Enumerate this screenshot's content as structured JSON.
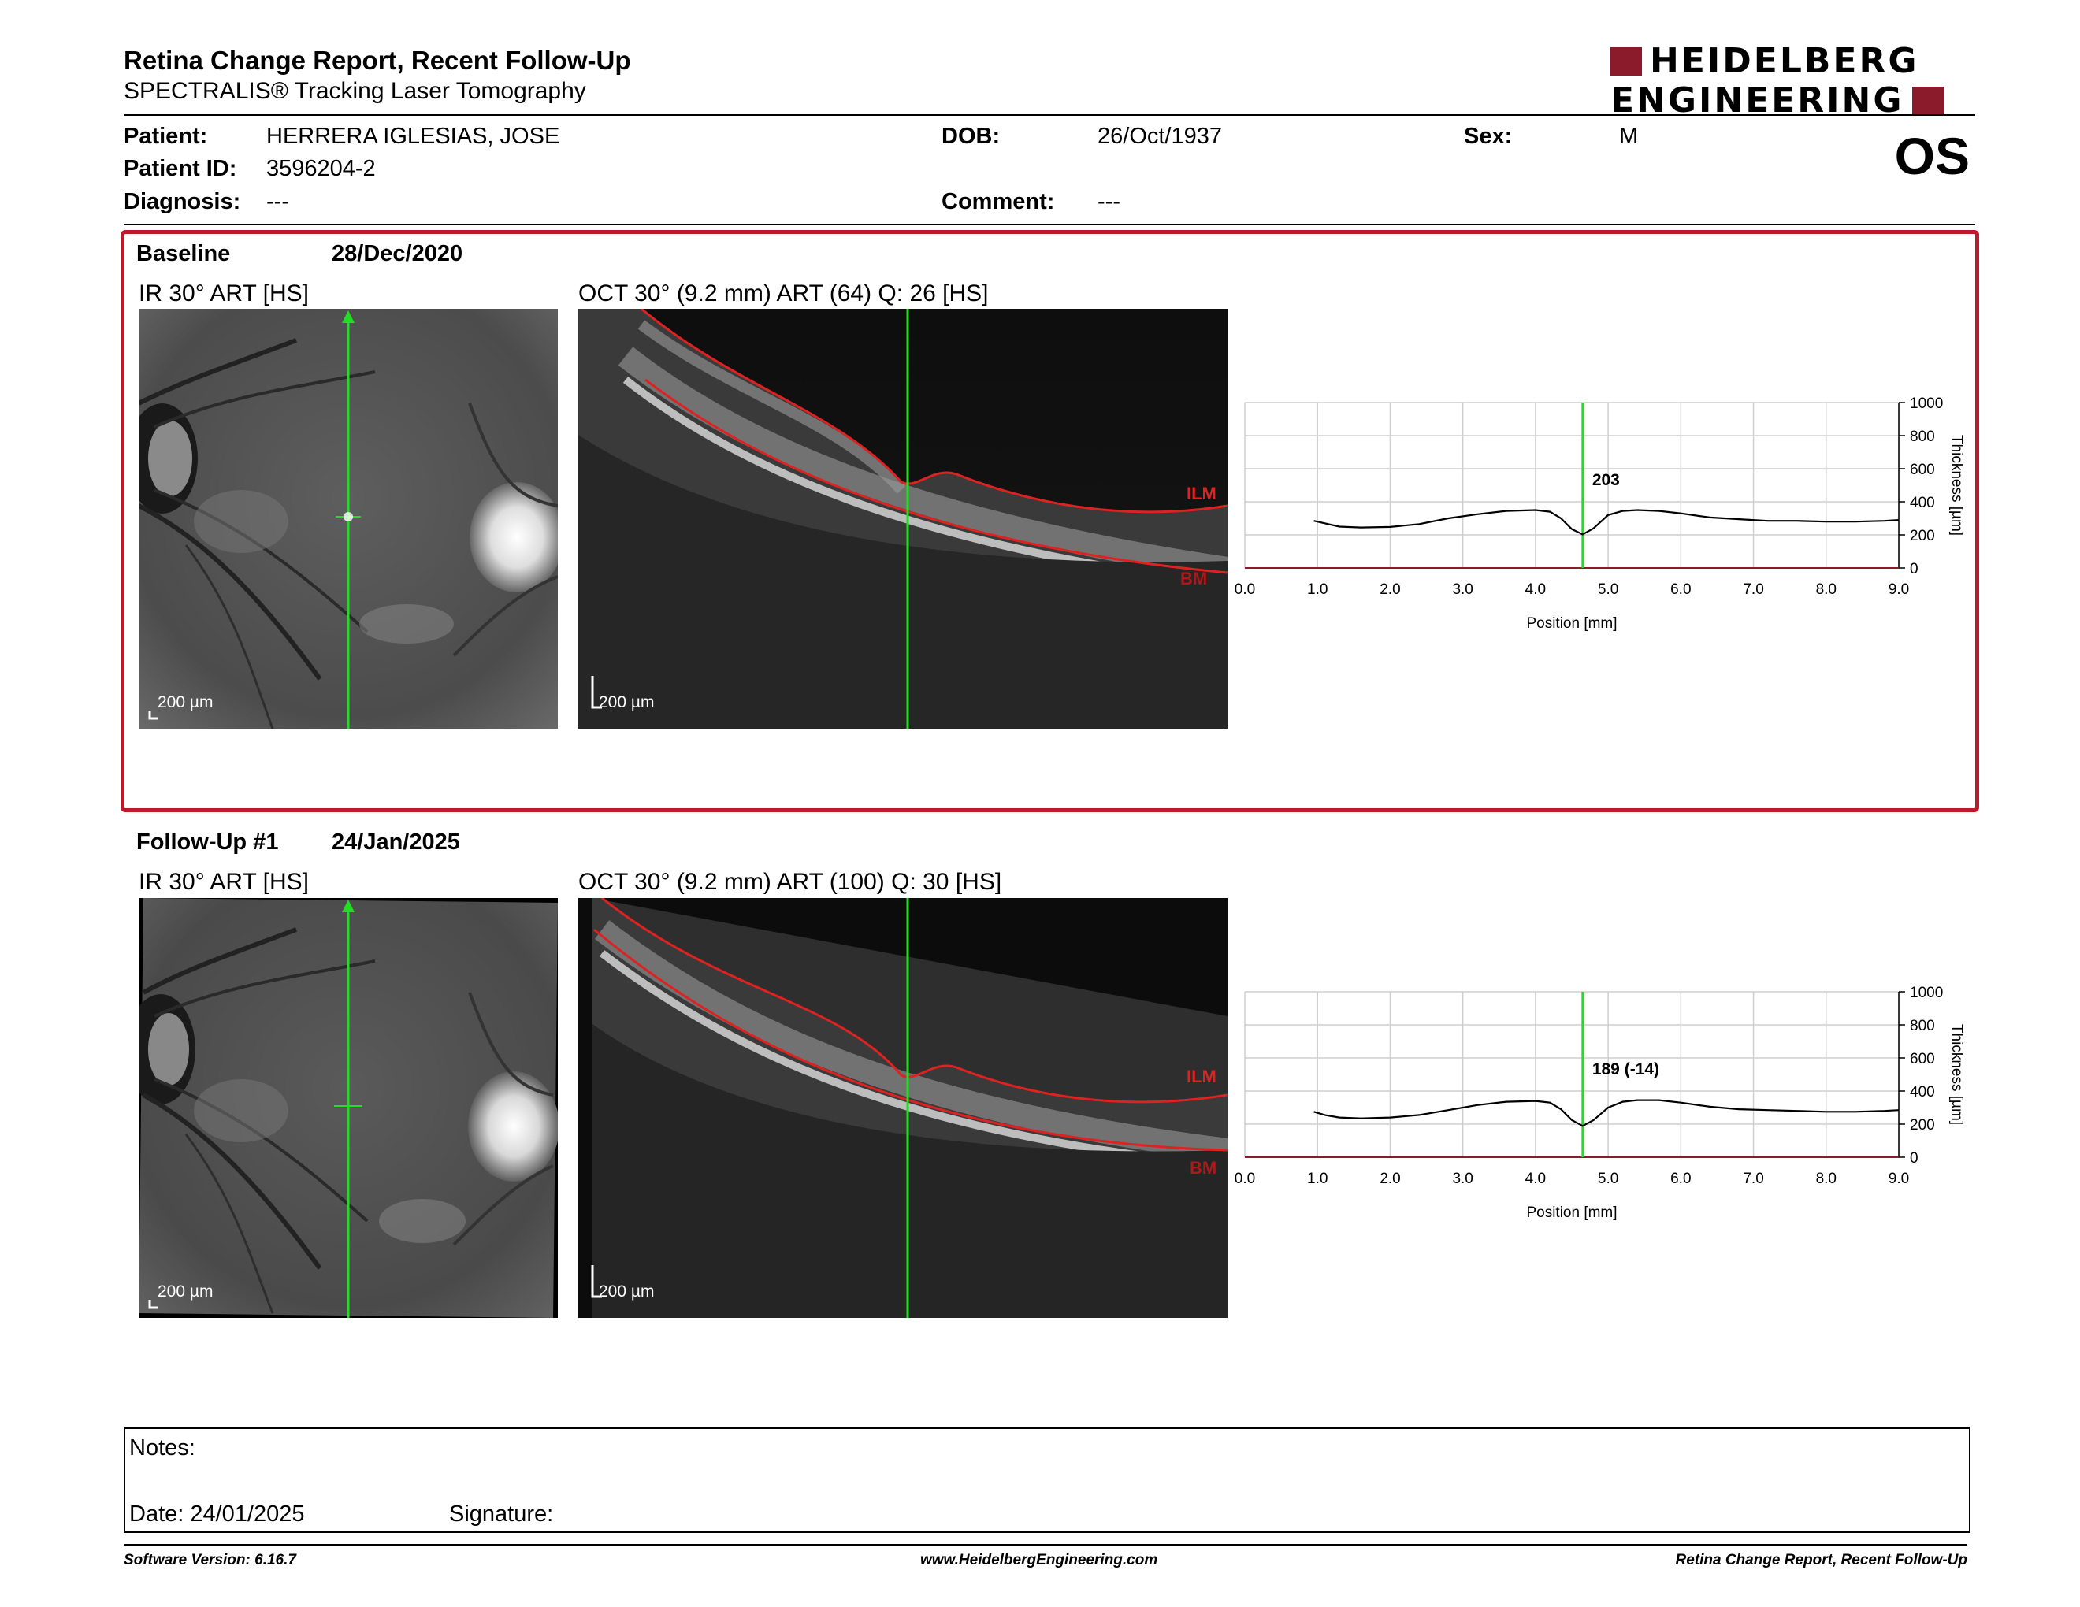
{
  "header": {
    "title": "Retina Change Report, Recent Follow-Up",
    "subtitle": "SPECTRALIS® Tracking Laser Tomography",
    "logo_line1": "HEIDELBERG",
    "logo_line2": "ENGINEERING",
    "eye": "OS"
  },
  "patient": {
    "patient_label": "Patient:",
    "patient_value": "HERRERA IGLESIAS, JOSE",
    "id_label": "Patient ID:",
    "id_value": "3596204-2",
    "diagnosis_label": "Diagnosis:",
    "diagnosis_value": "---",
    "dob_label": "DOB:",
    "dob_value": "26/Oct/1937",
    "comment_label": "Comment:",
    "comment_value": "---",
    "sex_label": "Sex:",
    "sex_value": "M"
  },
  "baseline": {
    "label": "Baseline",
    "date": "28/Dec/2020",
    "ir_caption": "IR 30° ART [HS]",
    "oct_caption": "OCT 30° (9.2 mm) ART (64) Q: 26 [HS]",
    "ir_scale": "200 µm",
    "oct_scale": "200 µm",
    "ilm": "ILM",
    "bm": "BM",
    "chart_data": {
      "type": "line",
      "xlabel": "Position [mm]",
      "ylabel": "Thickness [µm]",
      "xlim": [
        0,
        9
      ],
      "ylim": [
        0,
        1000
      ],
      "x_ticks": [
        "0.0",
        "1.0",
        "2.0",
        "3.0",
        "4.0",
        "5.0",
        "6.0",
        "7.0",
        "8.0",
        "9.0"
      ],
      "y_ticks": [
        "0",
        "200",
        "400",
        "600",
        "800",
        "1000"
      ],
      "marker_x": 4.65,
      "marker_label": "203",
      "x": [
        0.95,
        1.1,
        1.3,
        1.6,
        2.0,
        2.4,
        2.8,
        3.2,
        3.6,
        4.0,
        4.2,
        4.35,
        4.5,
        4.65,
        4.8,
        5.0,
        5.2,
        5.4,
        5.7,
        6.0,
        6.4,
        6.8,
        7.2,
        7.6,
        8.0,
        8.4,
        8.8,
        9.0
      ],
      "y": [
        285,
        270,
        250,
        245,
        248,
        265,
        300,
        325,
        345,
        350,
        340,
        300,
        235,
        203,
        240,
        320,
        345,
        350,
        345,
        330,
        305,
        295,
        285,
        285,
        280,
        280,
        285,
        290
      ]
    }
  },
  "followup": {
    "label": "Follow-Up #1",
    "date": "24/Jan/2025",
    "ir_caption": "IR 30° ART [HS]",
    "oct_caption": "OCT 30° (9.2 mm) ART (100) Q: 30 [HS]",
    "ir_scale": "200 µm",
    "oct_scale": "200 µm",
    "ilm": "ILM",
    "bm": "BM",
    "chart_data": {
      "type": "line",
      "xlabel": "Position [mm]",
      "ylabel": "Thickness [µm]",
      "xlim": [
        0,
        9
      ],
      "ylim": [
        0,
        1000
      ],
      "x_ticks": [
        "0.0",
        "1.0",
        "2.0",
        "3.0",
        "4.0",
        "5.0",
        "6.0",
        "7.0",
        "8.0",
        "9.0"
      ],
      "y_ticks": [
        "0",
        "200",
        "400",
        "600",
        "800",
        "1000"
      ],
      "marker_x": 4.65,
      "marker_label": "189 (-14)",
      "x": [
        0.95,
        1.1,
        1.3,
        1.6,
        2.0,
        2.4,
        2.8,
        3.2,
        3.6,
        4.0,
        4.2,
        4.35,
        4.5,
        4.65,
        4.8,
        5.0,
        5.2,
        5.4,
        5.7,
        6.0,
        6.4,
        6.8,
        7.2,
        7.6,
        8.0,
        8.4,
        8.8,
        9.0
      ],
      "y": [
        275,
        255,
        240,
        235,
        240,
        255,
        285,
        315,
        335,
        340,
        330,
        290,
        225,
        189,
        225,
        300,
        335,
        345,
        345,
        330,
        305,
        290,
        285,
        280,
        275,
        275,
        280,
        285
      ]
    }
  },
  "notes": {
    "notes_label": "Notes:",
    "date_label": "Date: 24/01/2025",
    "signature_label": "Signature:"
  },
  "footer": {
    "software": "Software Version: 6.16.7",
    "website": "www.HeidelbergEngineering.com",
    "report": "Retina Change Report, Recent Follow-Up"
  },
  "colors": {
    "accent": "#c0182b",
    "logo": "#8b1a2b",
    "scan_line": "#22dd22",
    "layer": "#dd2222"
  }
}
